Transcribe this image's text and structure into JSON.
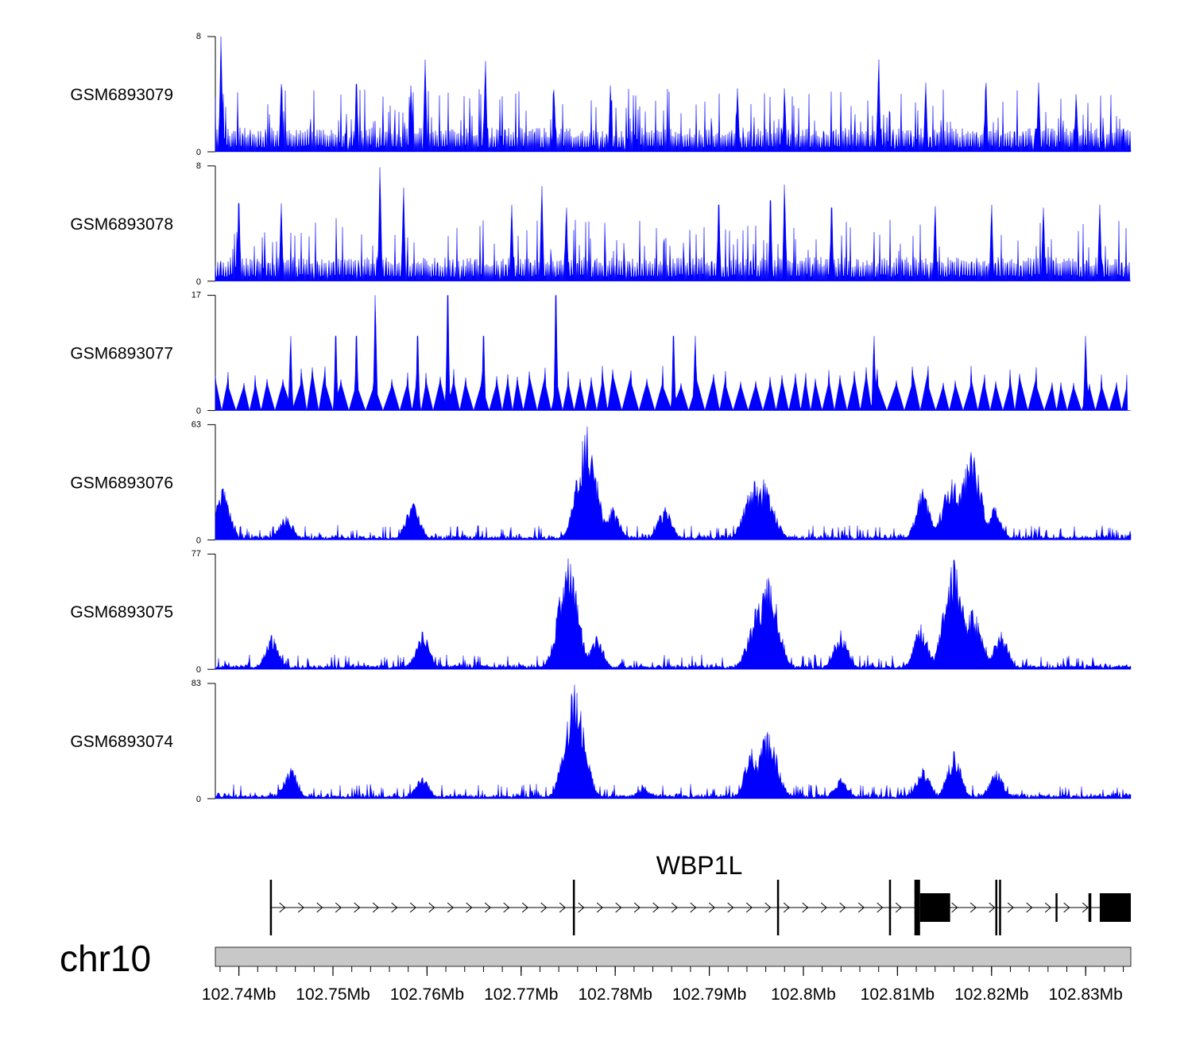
{
  "chart_data": {
    "type": "area",
    "title": "",
    "xlabel": "",
    "xunit": "Mb",
    "x_range": [
      102.7375,
      102.8348
    ],
    "color": "#0000FF",
    "chromosome": "chr10",
    "x_ticks": [
      {
        "value": 102.74,
        "label": "102.74Mb"
      },
      {
        "value": 102.75,
        "label": "102.75Mb"
      },
      {
        "value": 102.76,
        "label": "102.76Mb"
      },
      {
        "value": 102.77,
        "label": "102.77Mb"
      },
      {
        "value": 102.78,
        "label": "102.78Mb"
      },
      {
        "value": 102.79,
        "label": "102.79Mb"
      },
      {
        "value": 102.8,
        "label": "102.8Mb"
      },
      {
        "value": 102.81,
        "label": "102.81Mb"
      },
      {
        "value": 102.82,
        "label": "102.82Mb"
      },
      {
        "value": 102.83,
        "label": "102.83Mb"
      }
    ],
    "series": [
      {
        "name": "GSM6893079",
        "ymax": 8,
        "ymin_label": "0",
        "ymax_label": "8",
        "profile": "sparse",
        "peaks": [
          [
            102.7381,
            8
          ],
          [
            102.7445,
            4.7
          ],
          [
            102.7525,
            4.7
          ],
          [
            102.7583,
            4.6
          ],
          [
            102.7598,
            6.4
          ],
          [
            102.7662,
            6.3
          ],
          [
            102.7735,
            4.3
          ],
          [
            102.7795,
            4.6
          ],
          [
            102.793,
            4.4
          ],
          [
            102.798,
            4.4
          ],
          [
            102.808,
            6.4
          ],
          [
            102.813,
            4.8
          ],
          [
            102.8194,
            4.8
          ],
          [
            102.825,
            4.8
          ],
          [
            102.829,
            4.0
          ],
          [
            102.834,
            1.5
          ]
        ]
      },
      {
        "name": "GSM6893078",
        "ymax": 8,
        "ymin_label": "0",
        "ymax_label": "8",
        "profile": "sparse",
        "peaks": [
          [
            102.74,
            5.4
          ],
          [
            102.7445,
            5.4
          ],
          [
            102.755,
            7.9
          ],
          [
            102.7575,
            6.5
          ],
          [
            102.769,
            5.3
          ],
          [
            102.7722,
            6.6
          ],
          [
            102.7748,
            5.1
          ],
          [
            102.791,
            5.3
          ],
          [
            102.7965,
            5.6
          ],
          [
            102.798,
            6.7
          ],
          [
            102.803,
            5.1
          ],
          [
            102.814,
            5.2
          ],
          [
            102.82,
            5.3
          ],
          [
            102.8255,
            5.1
          ],
          [
            102.8315,
            5.3
          ]
        ]
      },
      {
        "name": "GSM6893077",
        "ymax": 17,
        "ymin_label": "0",
        "ymax_label": "17",
        "profile": "sparse",
        "peaks": [
          [
            102.7455,
            11
          ],
          [
            102.7503,
            11
          ],
          [
            102.7525,
            11
          ],
          [
            102.7545,
            17
          ],
          [
            102.759,
            11
          ],
          [
            102.7622,
            17
          ],
          [
            102.766,
            11
          ],
          [
            102.7737,
            17
          ],
          [
            102.7862,
            11
          ],
          [
            102.7885,
            11
          ],
          [
            102.8075,
            11
          ],
          [
            102.83,
            11
          ]
        ]
      },
      {
        "name": "GSM6893076",
        "ymax": 63,
        "ymin_label": "0",
        "ymax_label": "63",
        "profile": "peaks",
        "peaks": [
          [
            102.7383,
            28
          ],
          [
            102.745,
            13
          ],
          [
            102.7585,
            20
          ],
          [
            102.777,
            62
          ],
          [
            102.7797,
            18
          ],
          [
            102.7853,
            18
          ],
          [
            102.7948,
            32
          ],
          [
            102.7958,
            33
          ],
          [
            102.8127,
            28
          ],
          [
            102.8158,
            33
          ],
          [
            102.8178,
            48
          ],
          [
            102.8203,
            18
          ]
        ]
      },
      {
        "name": "GSM6893075",
        "ymax": 77,
        "ymin_label": "0",
        "ymax_label": "77",
        "profile": "peaks",
        "peaks": [
          [
            102.7435,
            23
          ],
          [
            102.7595,
            25
          ],
          [
            102.775,
            74
          ],
          [
            102.778,
            22
          ],
          [
            102.7953,
            44
          ],
          [
            102.7963,
            61
          ],
          [
            102.804,
            26
          ],
          [
            102.8125,
            30
          ],
          [
            102.816,
            73
          ],
          [
            102.818,
            40
          ],
          [
            102.821,
            25
          ]
        ]
      },
      {
        "name": "GSM6893074",
        "ymax": 83,
        "ymin_label": "0",
        "ymax_label": "83",
        "profile": "peaks",
        "peaks": [
          [
            102.7455,
            22
          ],
          [
            102.7595,
            15
          ],
          [
            102.7757,
            82
          ],
          [
            102.783,
            8
          ],
          [
            102.7945,
            36
          ],
          [
            102.7962,
            48
          ],
          [
            102.804,
            15
          ],
          [
            102.8127,
            22
          ],
          [
            102.816,
            34
          ],
          [
            102.8205,
            20
          ]
        ]
      }
    ],
    "gene_track": {
      "name": "WBP1L",
      "strand": "+",
      "exons": [
        [
          102.7433,
          102.7435,
          "tall"
        ],
        [
          102.7755,
          102.7757,
          "tall"
        ],
        [
          102.7972,
          102.7974,
          "tall"
        ],
        [
          102.8091,
          102.8093,
          "tall"
        ],
        [
          102.8118,
          102.8124,
          "utr"
        ],
        [
          102.8124,
          102.8156,
          "cds"
        ],
        [
          102.8204,
          102.8206,
          "tall"
        ],
        [
          102.8208,
          102.8212,
          "tall"
        ],
        [
          102.8268,
          102.827,
          "short"
        ],
        [
          102.8303,
          102.8306,
          "short"
        ],
        [
          102.8315,
          102.8348,
          "cds"
        ]
      ]
    }
  }
}
